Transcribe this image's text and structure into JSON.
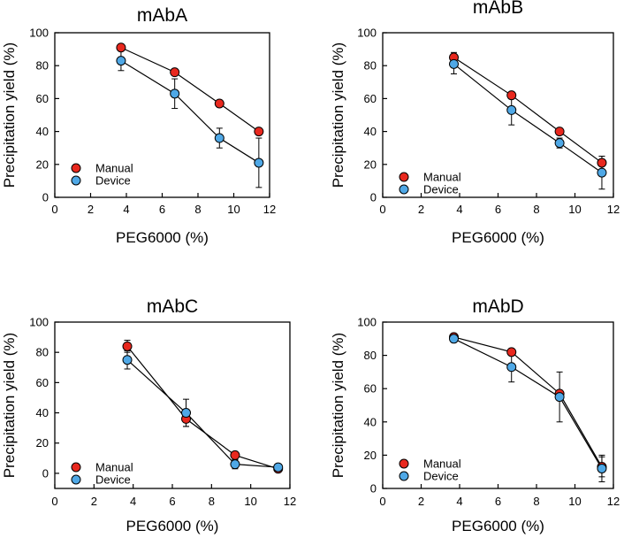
{
  "chart_data": [
    {
      "type": "line",
      "title": "mAbA",
      "xlabel": "PEG6000 (%)",
      "ylabel": "Precipitation yield (%)",
      "xlim": [
        0,
        12
      ],
      "ylim": [
        0,
        100
      ],
      "xticks": [
        "0",
        "2",
        "4",
        "6",
        "8",
        "10",
        "12"
      ],
      "yticks": [
        "0",
        "20",
        "40",
        "60",
        "80",
        "100"
      ],
      "legend_position": "bottom-left",
      "x": [
        3.7,
        6.7,
        9.2,
        11.4
      ],
      "series": [
        {
          "name": "Manual",
          "color": "#e8281e",
          "values": [
            91,
            76,
            57,
            40
          ],
          "errors": [
            0,
            0,
            0,
            0
          ]
        },
        {
          "name": "Device",
          "color": "#4fa8e6",
          "values": [
            83,
            63,
            36,
            21
          ],
          "errors": [
            6,
            9,
            6,
            15
          ]
        }
      ]
    },
    {
      "type": "line",
      "title": "mAbB",
      "xlabel": "PEG6000 (%)",
      "ylabel": "Precipitation yield (%)",
      "xlim": [
        0,
        12
      ],
      "ylim": [
        0,
        100
      ],
      "xticks": [
        "0",
        "2",
        "4",
        "6",
        "8",
        "10",
        "12"
      ],
      "yticks": [
        "0",
        "20",
        "40",
        "60",
        "80",
        "100"
      ],
      "legend_position": "bottom-left",
      "x": [
        3.7,
        6.7,
        9.2,
        11.4
      ],
      "series": [
        {
          "name": "Manual",
          "color": "#e8281e",
          "values": [
            85,
            62,
            40,
            21
          ],
          "errors": [
            3,
            0,
            0,
            4
          ]
        },
        {
          "name": "Device",
          "color": "#4fa8e6",
          "values": [
            81,
            53,
            33,
            15
          ],
          "errors": [
            6,
            9,
            3,
            10
          ]
        }
      ]
    },
    {
      "type": "line",
      "title": "mAbC",
      "xlabel": "PEG6000 (%)",
      "ylabel": "Precipitation yield (%)",
      "xlim": [
        0,
        12
      ],
      "ylim": [
        -10,
        100
      ],
      "xticks": [
        "0",
        "2",
        "4",
        "6",
        "8",
        "10",
        "12"
      ],
      "yticks": [
        "0",
        "20",
        "40",
        "60",
        "80",
        "100"
      ],
      "legend_position": "bottom-left",
      "x": [
        3.7,
        6.7,
        9.2,
        11.4
      ],
      "series": [
        {
          "name": "Manual",
          "color": "#e8281e",
          "values": [
            84,
            36,
            12,
            3
          ],
          "errors": [
            4,
            5,
            0,
            0
          ]
        },
        {
          "name": "Device",
          "color": "#4fa8e6",
          "values": [
            75,
            40,
            6,
            4
          ],
          "errors": [
            6,
            9,
            3,
            2
          ]
        }
      ]
    },
    {
      "type": "line",
      "title": "mAbD",
      "xlabel": "PEG6000 (%)",
      "ylabel": "Precipitation yield (%)",
      "xlim": [
        0,
        12
      ],
      "ylim": [
        0,
        100
      ],
      "xticks": [
        "0",
        "2",
        "4",
        "6",
        "8",
        "10",
        "12"
      ],
      "yticks": [
        "0",
        "20",
        "40",
        "60",
        "80",
        "100"
      ],
      "legend_position": "bottom-left",
      "x": [
        3.7,
        6.7,
        9.2,
        11.4
      ],
      "series": [
        {
          "name": "Manual",
          "color": "#e8281e",
          "values": [
            91,
            82,
            57,
            13
          ],
          "errors": [
            0,
            0,
            0,
            6
          ]
        },
        {
          "name": "Device",
          "color": "#4fa8e6",
          "values": [
            90,
            73,
            55,
            12
          ],
          "errors": [
            2,
            9,
            15,
            8
          ]
        }
      ]
    }
  ]
}
